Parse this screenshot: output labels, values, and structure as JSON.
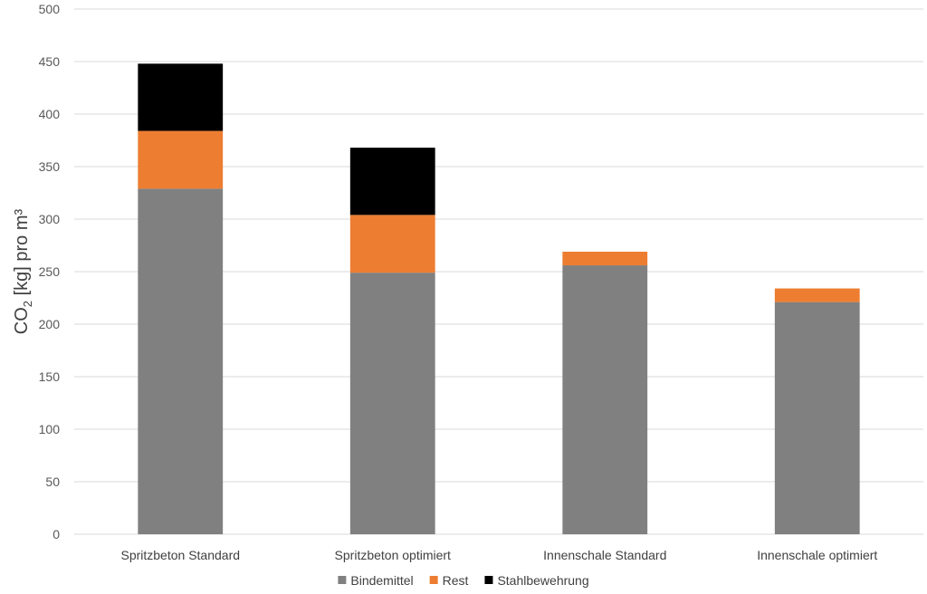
{
  "chart_data": {
    "type": "bar",
    "stacked": true,
    "title": "",
    "xlabel": "",
    "ylabel": {
      "main": "CO",
      "sub": "2",
      "rest": " [kg] pro m³"
    },
    "ylim": [
      0,
      500
    ],
    "yticks": [
      0,
      50,
      100,
      150,
      200,
      250,
      300,
      350,
      400,
      450,
      500
    ],
    "grid": true,
    "legend_position": "bottom",
    "categories": [
      "Spritzbeton Standard",
      "Spritzbeton optimiert",
      "Innenschale Standard",
      "Innenschale optimiert"
    ],
    "series": [
      {
        "name": "Bindemittel",
        "color": "#808080",
        "values": [
          329,
          249,
          256,
          221
        ]
      },
      {
        "name": "Rest",
        "color": "#ED7D31",
        "values": [
          55,
          55,
          13,
          13
        ]
      },
      {
        "name": "Stahlbewehrung",
        "color": "#000000",
        "values": [
          64,
          64,
          0,
          0
        ]
      }
    ]
  }
}
